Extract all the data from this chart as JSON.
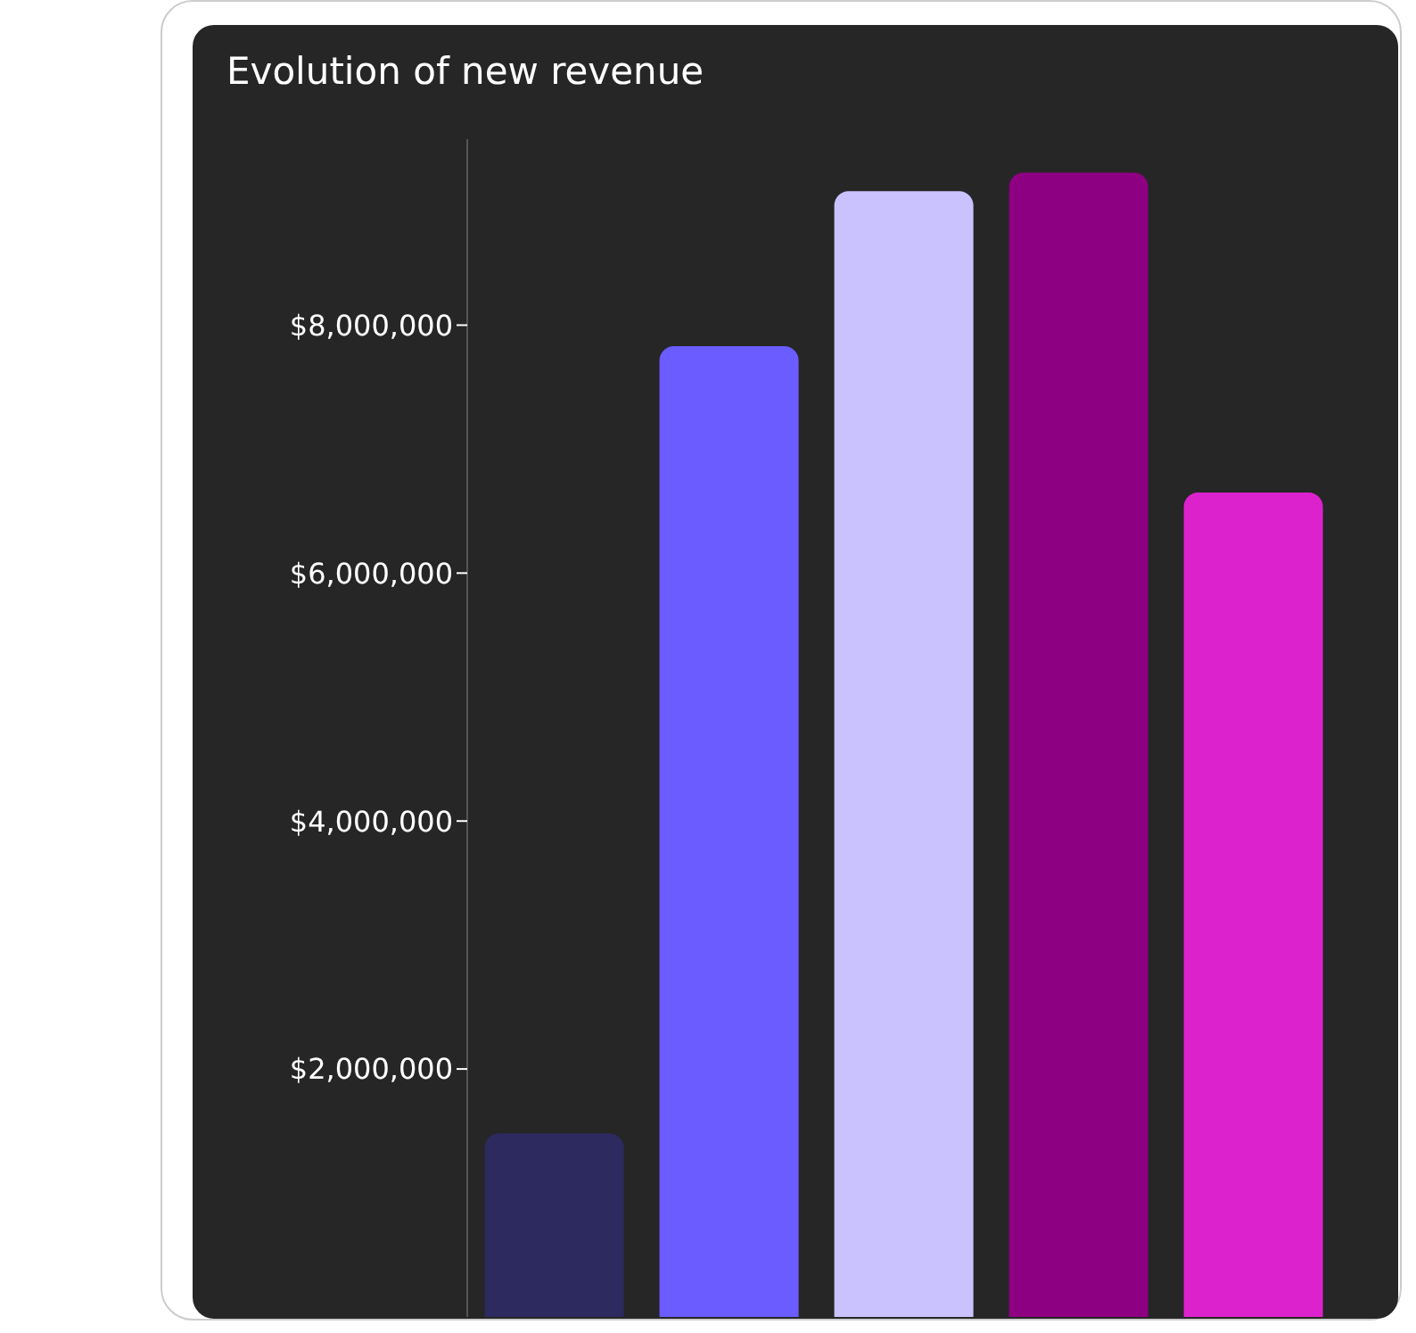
{
  "chart_data": {
    "type": "bar",
    "title": "Evolution of new revenue",
    "categories": [
      null,
      null,
      null,
      null,
      null
    ],
    "values": [
      1480000,
      7830000,
      9080000,
      9230000,
      6650000
    ],
    "colors": [
      "#2c2a5e",
      "#6a5cff",
      "#c9c2ff",
      "#8e0082",
      "#dc22cc"
    ],
    "ylim": [
      0,
      9500000
    ],
    "yticks": [
      {
        "value": 2000000,
        "label": "$2,000,000"
      },
      {
        "value": 4000000,
        "label": "$4,000,000"
      },
      {
        "value": 6000000,
        "label": "$6,000,000"
      },
      {
        "value": 8000000,
        "label": "$8,000,000"
      }
    ],
    "tick_labels": "y"
  }
}
